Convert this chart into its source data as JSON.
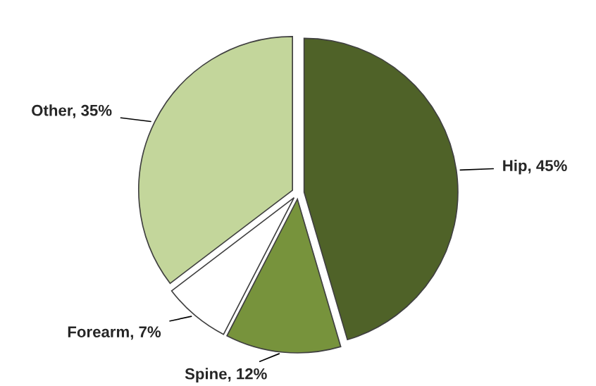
{
  "chart_data": {
    "type": "pie",
    "categories": [
      "Hip",
      "Spine",
      "Forearm",
      "Other"
    ],
    "values": [
      45,
      12,
      7,
      35
    ],
    "value_labels": [
      "45%",
      "12%",
      "7%",
      "35%"
    ],
    "colors": [
      "#4f6228",
      "#77933c",
      "#ffffff",
      "#c3d69b"
    ],
    "legend": false
  }
}
